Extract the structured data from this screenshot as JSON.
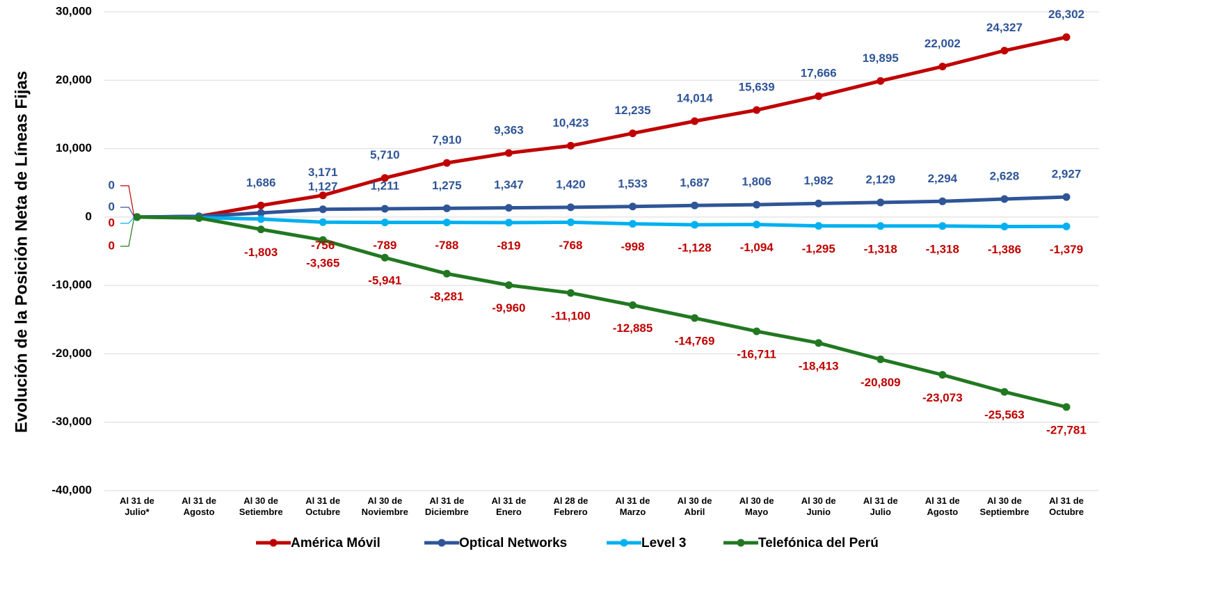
{
  "chart_data": {
    "type": "line",
    "y_label": "Evolución de la Posición Neta de Líneas Fijas",
    "categories": [
      "Al 31 de\nJulio*",
      "Al 31 de\nAgosto",
      "Al 30 de\nSetiembre",
      "Al 31 de\nOctubre",
      "Al 30 de\nNoviembre",
      "Al 31 de\nDiciembre",
      "Al 31 de\nEnero",
      "Al 28 de\nFebrero",
      "Al 31 de\nMarzo",
      "Al 30 de\nAbril",
      "Al 30 de\nMayo",
      "Al 30 de\nJunio",
      "Al 31 de\nJulio",
      "Al 31 de\nAgosto",
      "Al 30 de\nSeptiembre",
      "Al 31 de\nOctubre"
    ],
    "series": [
      {
        "name": "América Móvil",
        "color": "#c00000",
        "label_color": "#2f5597",
        "label_position": "above",
        "values": [
          0,
          100,
          1686,
          3171,
          5710,
          7910,
          9363,
          10423,
          12235,
          14014,
          15639,
          17666,
          19895,
          22002,
          24327,
          26302
        ],
        "value_labels": [
          "0",
          null,
          "1,686",
          "3,171",
          "5,710",
          "7,910",
          "9,363",
          "10,423",
          "12,235",
          "14,014",
          "15,639",
          "17,666",
          "19,895",
          "22,002",
          "24,327",
          "26,302"
        ]
      },
      {
        "name": "Optical Networks",
        "color": "#2f5597",
        "label_color": "#2f5597",
        "label_position": "above",
        "values": [
          0,
          100,
          600,
          1127,
          1211,
          1275,
          1347,
          1420,
          1533,
          1687,
          1806,
          1982,
          2129,
          2294,
          2628,
          2927
        ],
        "value_labels": [
          "0",
          null,
          null,
          "1,127",
          "1,211",
          "1,275",
          "1,347",
          "1,420",
          "1,533",
          "1,687",
          "1,806",
          "1,982",
          "2,129",
          "2,294",
          "2,628",
          "2,927"
        ]
      },
      {
        "name": "Level 3",
        "color": "#00b0f0",
        "label_color": "#c00000",
        "label_position": "below",
        "values": [
          0,
          -100,
          -300,
          -756,
          -789,
          -788,
          -819,
          -768,
          -998,
          -1128,
          -1094,
          -1295,
          -1318,
          -1318,
          -1386,
          -1379
        ],
        "value_labels": [
          "0",
          null,
          null,
          "-756",
          "-789",
          "-788",
          "-819",
          "-768",
          "-998",
          "-1,128",
          "-1,094",
          "-1,295",
          "-1,318",
          "-1,318",
          "-1,386",
          "-1,379"
        ]
      },
      {
        "name": "Telefónica del Perú",
        "color": "#217821",
        "label_color": "#c00000",
        "label_position": "below",
        "values": [
          0,
          -150,
          -1803,
          -3365,
          -5941,
          -8281,
          -9960,
          -11100,
          -12885,
          -14769,
          -16711,
          -18413,
          -20809,
          -23073,
          -25563,
          -27781
        ],
        "value_labels": [
          "0",
          null,
          "-1,803",
          "-3,365",
          "-5,941",
          "-8,281",
          "-9,960",
          "-11,100",
          "-12,885",
          "-14,769",
          "-16,711",
          "-18,413",
          "-20,809",
          "-23,073",
          "-25,563",
          "-27,781"
        ]
      }
    ],
    "ylim": [
      -40000,
      30000
    ],
    "yticks": [
      {
        "value": -40000,
        "label": "-40,000"
      },
      {
        "value": -30000,
        "label": "-30,000"
      },
      {
        "value": -20000,
        "label": "-20,000"
      },
      {
        "value": -10000,
        "label": "-10,000"
      },
      0,
      {
        "value": 10000,
        "label": "10,000"
      },
      {
        "value": 20000,
        "label": "20,000"
      },
      {
        "value": 30000,
        "label": "30,000"
      }
    ],
    "grid": true
  }
}
